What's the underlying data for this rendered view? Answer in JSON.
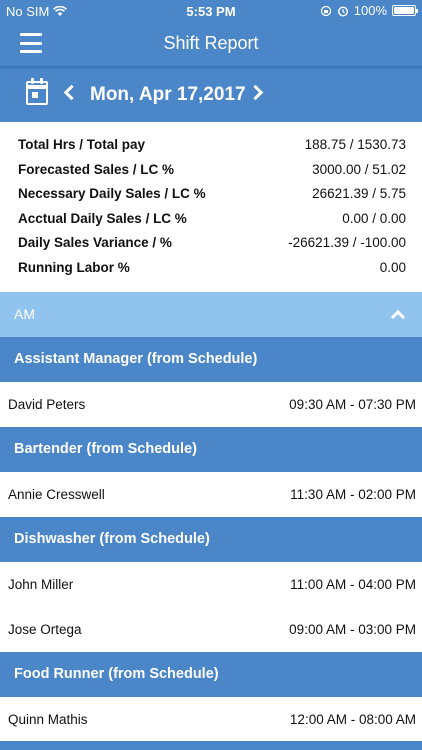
{
  "status_bar": {
    "carrier": "No SIM",
    "time": "5:53 PM",
    "battery": "100%"
  },
  "nav": {
    "title": "Shift Report"
  },
  "date_bar": {
    "date": "Mon, Apr 17,2017"
  },
  "summary": [
    {
      "label": "Total Hrs / Total pay",
      "value": "188.75 / 1530.73"
    },
    {
      "label": "Forecasted Sales / LC %",
      "value": "3000.00 / 51.02"
    },
    {
      "label": "Necessary Daily Sales / LC %",
      "value": "26621.39 / 5.75"
    },
    {
      "label": "Acctual Daily Sales / LC %",
      "value": "0.00 / 0.00"
    },
    {
      "label": "Daily Sales Variance / %",
      "value": "-26621.39 / -100.00"
    },
    {
      "label": "Running Labor %",
      "value": "0.00"
    }
  ],
  "shift_section": {
    "label": "AM"
  },
  "roles": [
    {
      "title": "Assistant Manager (from Schedule)",
      "employees": [
        {
          "name": "David  Peters",
          "time": "09:30 AM - 07:30 PM"
        }
      ]
    },
    {
      "title": "Bartender (from Schedule)",
      "employees": [
        {
          "name": "Annie  Cresswell",
          "time": "11:30 AM - 02:00 PM"
        }
      ]
    },
    {
      "title": "Dishwasher (from Schedule)",
      "employees": [
        {
          "name": "John  Miller",
          "time": "11:00 AM - 04:00 PM"
        },
        {
          "name": "Jose  Ortega",
          "time": "09:00 AM - 03:00 PM"
        }
      ]
    },
    {
      "title": "Food Runner (from Schedule)",
      "employees": [
        {
          "name": "Quinn  Mathis",
          "time": "12:00 AM - 08:00 AM"
        }
      ]
    }
  ],
  "colors": {
    "primary": "#4a86c8",
    "section_light": "#90c3ee"
  },
  "icons": {
    "menu": "hamburger-menu-icon",
    "calendar": "calendar-icon",
    "prev": "chevron-left-icon",
    "next": "chevron-right-icon",
    "collapse": "chevron-up-icon"
  }
}
